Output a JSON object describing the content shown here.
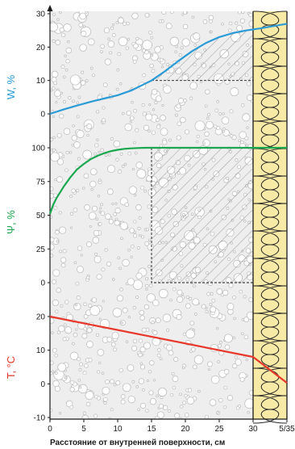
{
  "chart_data": [
    {
      "type": "line",
      "panel": "W",
      "ylabel": "W, %",
      "color": "#2a9bd6",
      "ylim": [
        0,
        30
      ],
      "yticks": [
        "30",
        "20",
        "10",
        "0"
      ],
      "series": [
        {
          "x": [
            0,
            2,
            4,
            6,
            8,
            10,
            12,
            14,
            15,
            17,
            19,
            21,
            23,
            25,
            27,
            29,
            30,
            31,
            33,
            35
          ],
          "values": [
            0,
            1.3,
            2.5,
            3.6,
            4.6,
            5.6,
            7.0,
            9.0,
            10.0,
            12.8,
            15.9,
            18.8,
            21.2,
            23.0,
            24.2,
            25.0,
            25.3,
            25.6,
            26.3,
            27.0
          ]
        }
      ],
      "dashed_region": {
        "x_from": 15,
        "x_to": 30,
        "y_from": 10,
        "y_to": 25.3
      }
    },
    {
      "type": "line",
      "panel": "Psi",
      "ylabel": "Ψ, %",
      "color": "#1aa84f",
      "ylim": [
        0,
        100
      ],
      "yticks": [
        "100",
        "75",
        "50",
        "25",
        "0"
      ],
      "series": [
        {
          "x": [
            0,
            0.5,
            1,
            2,
            3,
            4,
            5,
            6,
            7,
            8,
            9,
            10,
            11,
            12,
            13,
            14,
            15,
            20,
            25,
            30,
            35
          ],
          "values": [
            51,
            58,
            63,
            71,
            78,
            84,
            88,
            91.5,
            94,
            96,
            97.5,
            98.5,
            99.2,
            99.6,
            99.8,
            100,
            100,
            100,
            100,
            100,
            100
          ]
        }
      ],
      "dashed_region": {
        "x_from": 15,
        "x_to": 30,
        "y_from": 0,
        "y_to": 100
      }
    },
    {
      "type": "line",
      "panel": "T",
      "ylabel": "T, °C",
      "color": "#e8382a",
      "ylim": [
        -10,
        20
      ],
      "yticks": [
        "20",
        "10",
        "0",
        "-10"
      ],
      "series": [
        {
          "x": [
            0,
            30,
            35
          ],
          "values": [
            20,
            8,
            0.3
          ]
        }
      ]
    }
  ],
  "x_axis": {
    "label": "Расстояние от внутренней поверхности, см",
    "ticks": [
      "0",
      "5",
      "10",
      "15",
      "20",
      "25",
      "30",
      "5/35"
    ],
    "tick_positions": [
      0,
      5,
      10,
      15,
      20,
      25,
      30,
      35
    ],
    "range": [
      0,
      35
    ]
  },
  "materials": {
    "concrete_color": "#eeeeee",
    "insulation_color": "#f7eaa6",
    "insulation_x_range": [
      30,
      35
    ]
  }
}
